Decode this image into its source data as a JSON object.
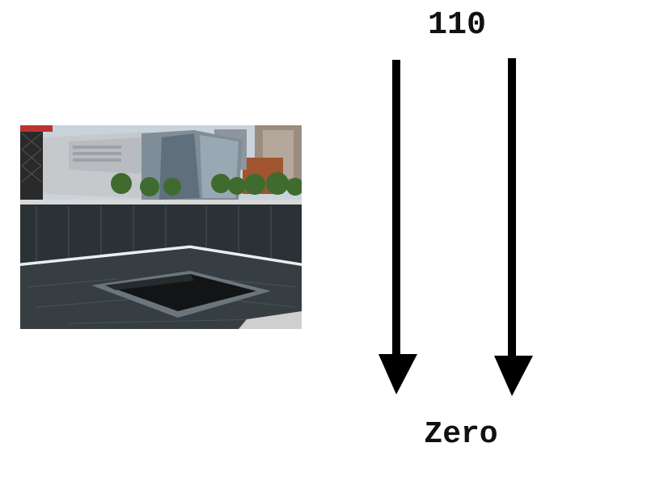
{
  "photo": {
    "subject": "memorial-pool-photo"
  },
  "labels": {
    "top": "110",
    "bottom": "Zero"
  },
  "colors": {
    "arrow": "#000000",
    "text": "#111111",
    "background": "#ffffff"
  }
}
